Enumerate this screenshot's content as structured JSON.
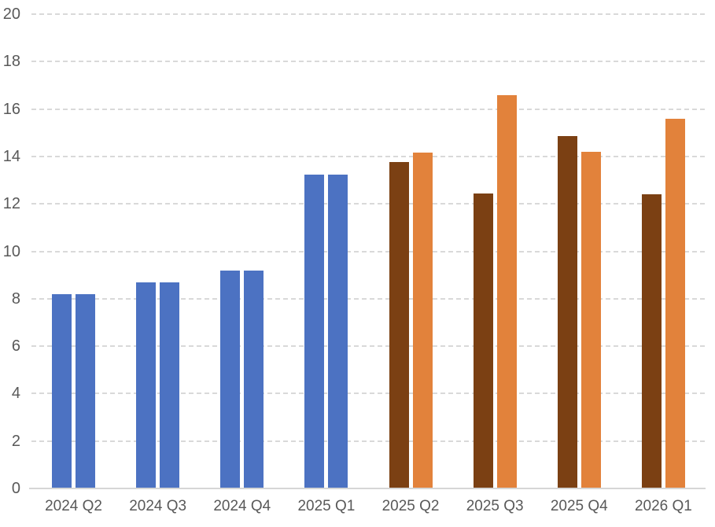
{
  "chart_data": {
    "type": "bar",
    "title": "",
    "xlabel": "",
    "ylabel": "",
    "legend": "none",
    "grid": "horizontal-dashed",
    "ylim": [
      0,
      20
    ],
    "yticks": [
      0,
      2,
      4,
      6,
      8,
      10,
      12,
      14,
      16,
      18,
      20
    ],
    "categories": [
      "2024 Q2",
      "2024 Q3",
      "2024 Q4",
      "2025 Q1",
      "2025 Q2",
      "2025 Q3",
      "2025 Q4",
      "2026 Q1"
    ],
    "series": [
      {
        "name": "left-bar",
        "values": [
          8.2,
          8.7,
          9.2,
          13.25,
          13.75,
          12.45,
          14.85,
          12.4
        ],
        "colors": [
          "blue",
          "blue",
          "blue",
          "blue",
          "brown",
          "brown",
          "brown",
          "brown"
        ]
      },
      {
        "name": "right-bar",
        "values": [
          8.2,
          8.7,
          9.2,
          13.25,
          14.15,
          16.6,
          14.2,
          15.6
        ],
        "colors": [
          "blue",
          "blue",
          "blue",
          "blue",
          "orange",
          "orange",
          "orange",
          "orange"
        ]
      }
    ],
    "palette": {
      "blue": "#4C72C2",
      "brown": "#7B4013",
      "orange": "#E2823B"
    }
  },
  "styles": {
    "background": "#FFFFFF",
    "gridline_color": "#D9D9D9",
    "axis_line_color": "#D6D6D6",
    "axis_text_color": "#595959"
  }
}
